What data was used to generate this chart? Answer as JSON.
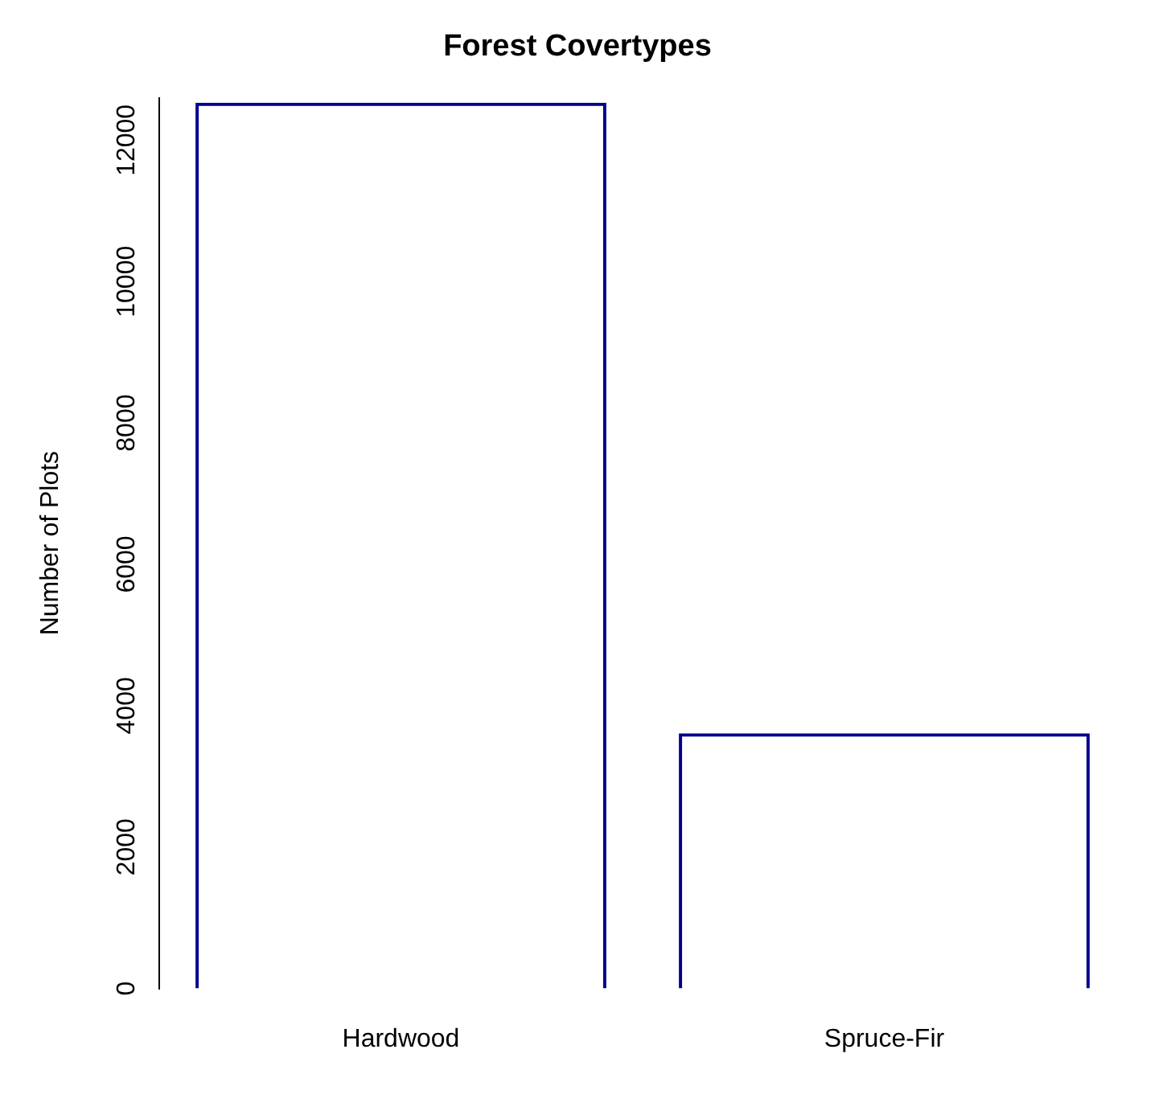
{
  "chart_data": {
    "type": "bar",
    "title": "Forest Covertypes",
    "ylabel": "Number of Plots",
    "categories": [
      "Hardwood",
      "Spruce-Fir"
    ],
    "values": [
      12530,
      3610
    ],
    "color": "#00008b",
    "ylim": [
      0,
      12600
    ],
    "yticks": [
      0,
      2000,
      4000,
      6000,
      8000,
      10000,
      12000
    ],
    "grid": false,
    "legend": false
  }
}
